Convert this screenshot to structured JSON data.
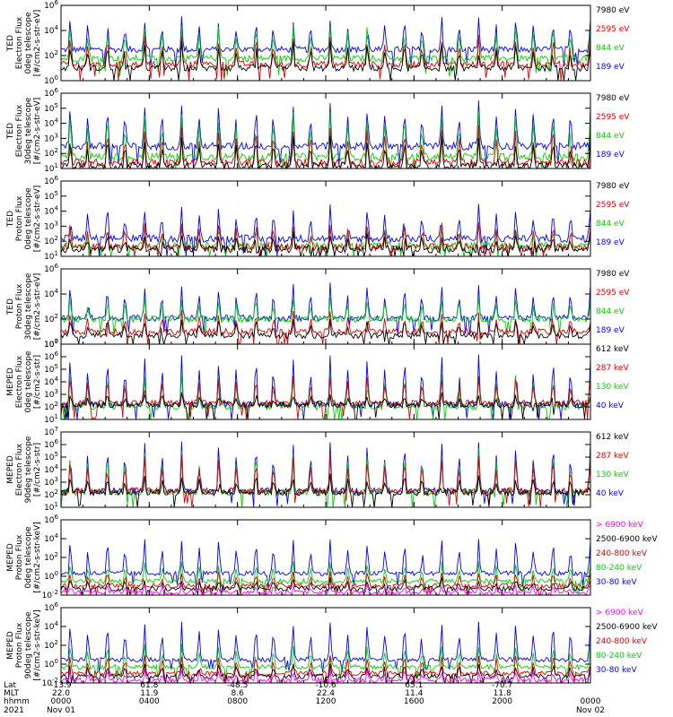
{
  "colors": {
    "black": "#000000",
    "red": "#e00000",
    "green": "#00d000",
    "blue": "#0000ff",
    "magenta": "#ff00ff"
  },
  "chart_data": [
    {
      "type": "line",
      "ylog": true,
      "ylim": [
        1,
        1000000
      ],
      "ylabel": [
        "TED",
        "Electron Flux",
        "0deg telescope",
        "[#/cm2-s-str-eV]"
      ],
      "yticks": [
        {
          "label": "10",
          "exp": "0",
          "value": 1
        },
        {
          "label": "10",
          "exp": "2",
          "value": 100
        },
        {
          "label": "10",
          "exp": "4",
          "value": 10000
        },
        {
          "label": "10",
          "exp": "6",
          "value": 1000000
        }
      ],
      "series": [
        {
          "name": "7980 eV",
          "color": "black",
          "base": 10,
          "peak": 1000
        },
        {
          "name": "2595 eV",
          "color": "red",
          "base": 20,
          "peak": 3000
        },
        {
          "name": "844 eV",
          "color": "green",
          "base": 60,
          "peak": 30000
        },
        {
          "name": "189 eV",
          "color": "blue",
          "base": 300,
          "peak": 100000
        }
      ]
    },
    {
      "type": "line",
      "ylog": true,
      "ylim": [
        10,
        1000000
      ],
      "ylabel": [
        "TED",
        "Electron Flux",
        "30deg telescope",
        "[#/cm2-s-str-eV]"
      ],
      "yticks": [
        {
          "label": "10",
          "exp": "1",
          "value": 10
        },
        {
          "label": "10",
          "exp": "2",
          "value": 100
        },
        {
          "label": "10",
          "exp": "3",
          "value": 1000
        },
        {
          "label": "10",
          "exp": "4",
          "value": 10000
        },
        {
          "label": "10",
          "exp": "5",
          "value": 100000
        },
        {
          "label": "10",
          "exp": "6",
          "value": 1000000
        }
      ],
      "series": [
        {
          "name": "7980 eV",
          "color": "black",
          "base": 15,
          "peak": 1000
        },
        {
          "name": "2595 eV",
          "color": "red",
          "base": 25,
          "peak": 5000
        },
        {
          "name": "844 eV",
          "color": "green",
          "base": 60,
          "peak": 50000
        },
        {
          "name": "189 eV",
          "color": "blue",
          "base": 300,
          "peak": 200000
        }
      ]
    },
    {
      "type": "line",
      "ylog": true,
      "ylim": [
        10,
        1000000
      ],
      "ylabel": [
        "TED",
        "Proton Flux",
        "0deg telescope",
        "[#/cm2-s-str-eV]"
      ],
      "yticks": [
        {
          "label": "10",
          "exp": "1",
          "value": 10
        },
        {
          "label": "10",
          "exp": "2",
          "value": 100
        },
        {
          "label": "10",
          "exp": "3",
          "value": 1000
        },
        {
          "label": "10",
          "exp": "4",
          "value": 10000
        },
        {
          "label": "10",
          "exp": "5",
          "value": 100000
        },
        {
          "label": "10",
          "exp": "6",
          "value": 1000000
        }
      ],
      "series": [
        {
          "name": "7980 eV",
          "color": "black",
          "base": 30,
          "peak": 300
        },
        {
          "name": "2595 eV",
          "color": "red",
          "base": 40,
          "peak": 1500
        },
        {
          "name": "844 eV",
          "color": "green",
          "base": 50,
          "peak": 1000
        },
        {
          "name": "189 eV",
          "color": "blue",
          "base": 150,
          "peak": 20000
        }
      ]
    },
    {
      "type": "line",
      "ylog": true,
      "ylim": [
        1,
        1000000
      ],
      "ylabel": [
        "TED",
        "Proton Flux",
        "30deg telescope",
        "[#/cm2-s-str-eV]"
      ],
      "yticks": [
        {
          "label": "10",
          "exp": "0",
          "value": 1
        },
        {
          "label": "10",
          "exp": "2",
          "value": 100
        },
        {
          "label": "10",
          "exp": "4",
          "value": 10000
        },
        {
          "label": "10",
          "exp": "6",
          "value": 1000000
        }
      ],
      "series": [
        {
          "name": "7980 eV",
          "color": "black",
          "base": 5,
          "peak": 100
        },
        {
          "name": "2595 eV",
          "color": "red",
          "base": 10,
          "peak": 300
        },
        {
          "name": "844 eV",
          "color": "green",
          "base": 100,
          "peak": 5000
        },
        {
          "name": "189 eV",
          "color": "blue",
          "base": 120,
          "peak": 50000
        }
      ]
    },
    {
      "type": "line",
      "ylog": true,
      "ylim": [
        10,
        10000000
      ],
      "ylabel": [
        "MEPED",
        "Electron Flux",
        "0deg telescope",
        "[#/cm2-s-str]"
      ],
      "yticks": [
        {
          "label": "10",
          "exp": "1",
          "value": 10
        },
        {
          "label": "10",
          "exp": "2",
          "value": 100
        },
        {
          "label": "10",
          "exp": "3",
          "value": 1000
        },
        {
          "label": "10",
          "exp": "4",
          "value": 10000
        },
        {
          "label": "10",
          "exp": "5",
          "value": 100000
        },
        {
          "label": "10",
          "exp": "6",
          "value": 1000000
        },
        {
          "label": "10",
          "exp": "7",
          "value": 10000000
        }
      ],
      "series": [
        {
          "name": "612 keV",
          "color": "black",
          "base": 150,
          "peak": 1000
        },
        {
          "name": "287 keV",
          "color": "red",
          "base": 200,
          "peak": 30000
        },
        {
          "name": "130 keV",
          "color": "green",
          "base": 100,
          "peak": 50000
        },
        {
          "name": "40 keV",
          "color": "blue",
          "base": 150,
          "peak": 1000000
        }
      ]
    },
    {
      "type": "line",
      "ylog": true,
      "ylim": [
        10,
        10000000
      ],
      "ylabel": [
        "MEPED",
        "Electron Flux",
        "90deg telescope",
        "[#/cm2-s-str]"
      ],
      "yticks": [
        {
          "label": "10",
          "exp": "1",
          "value": 10
        },
        {
          "label": "10",
          "exp": "2",
          "value": 100
        },
        {
          "label": "10",
          "exp": "3",
          "value": 1000
        },
        {
          "label": "10",
          "exp": "4",
          "value": 10000
        },
        {
          "label": "10",
          "exp": "5",
          "value": 100000
        },
        {
          "label": "10",
          "exp": "6",
          "value": 1000000
        },
        {
          "label": "10",
          "exp": "7",
          "value": 10000000
        }
      ],
      "series": [
        {
          "name": "612 keV",
          "color": "black",
          "base": 150,
          "peak": 3000
        },
        {
          "name": "287 keV",
          "color": "red",
          "base": 200,
          "peak": 100000
        },
        {
          "name": "130 keV",
          "color": "green",
          "base": 150,
          "peak": 300000
        },
        {
          "name": "40 keV",
          "color": "blue",
          "base": 200,
          "peak": 2000000
        }
      ]
    },
    {
      "type": "line",
      "ylog": true,
      "ylim": [
        0.01,
        1000000
      ],
      "ylabel": [
        "MEPED",
        "Proton Flux",
        "0deg telescope",
        "[#/cm2-s-str-keV]"
      ],
      "yticks": [
        {
          "label": "10",
          "exp": "-2",
          "value": 0.01
        },
        {
          "label": "10",
          "exp": "0",
          "value": 1
        },
        {
          "label": "10",
          "exp": "2",
          "value": 100
        },
        {
          "label": "10",
          "exp": "4",
          "value": 10000
        },
        {
          "label": "10",
          "exp": "6",
          "value": 1000000
        }
      ],
      "series": [
        {
          "name": "> 6900 keV",
          "color": "magenta",
          "base": 0.02,
          "peak": 0.1
        },
        {
          "name": "2500-6900 keV",
          "color": "black",
          "base": 0.05,
          "peak": 0.5
        },
        {
          "name": "240-800 keV",
          "color": "red",
          "base": 0.1,
          "peak": 3
        },
        {
          "name": "80-240 keV",
          "color": "green",
          "base": 0.3,
          "peak": 30
        },
        {
          "name": "30-80 keV",
          "color": "blue",
          "base": 2,
          "peak": 10000
        }
      ]
    },
    {
      "type": "line",
      "ylog": true,
      "ylim": [
        0.01,
        1000000
      ],
      "ylabel": [
        "MEPED",
        "Proton Flux",
        "90deg telescope",
        "[#/cm2-s-str-keV]"
      ],
      "yticks": [
        {
          "label": "10",
          "exp": "-2",
          "value": 0.01
        },
        {
          "label": "10",
          "exp": "0",
          "value": 1
        },
        {
          "label": "10",
          "exp": "2",
          "value": 100
        },
        {
          "label": "10",
          "exp": "4",
          "value": 10000
        },
        {
          "label": "10",
          "exp": "6",
          "value": 1000000
        }
      ],
      "series": [
        {
          "name": "> 6900 keV",
          "color": "magenta",
          "base": 0.02,
          "peak": 0.2
        },
        {
          "name": "2500-6900 keV",
          "color": "black",
          "base": 0.05,
          "peak": 1
        },
        {
          "name": "240-800 keV",
          "color": "red",
          "base": 0.1,
          "peak": 10
        },
        {
          "name": "80-240 keV",
          "color": "green",
          "base": 0.5,
          "peak": 100
        },
        {
          "name": "30-80 keV",
          "color": "blue",
          "base": 3,
          "peak": 30000
        }
      ]
    }
  ],
  "xaxis": {
    "row_labels": [
      "Lat",
      "MLT",
      "hhmm",
      "2021"
    ],
    "ticks": [
      {
        "lat": "-13.9",
        "mlt": "22.0",
        "hhmm": "0000",
        "date": "Nov 01"
      },
      {
        "lat": "61.8",
        "mlt": "11.9",
        "hhmm": "0400",
        "date": ""
      },
      {
        "lat": "-48.5",
        "mlt": "8.6",
        "hhmm": "0800",
        "date": ""
      },
      {
        "lat": "-10.6",
        "mlt": "22.4",
        "hhmm": "1200",
        "date": ""
      },
      {
        "lat": "65.1",
        "mlt": "11.4",
        "hhmm": "1600",
        "date": ""
      },
      {
        "lat": "-70.7",
        "mlt": "11.8",
        "hhmm": "2000",
        "date": ""
      },
      {
        "lat": "",
        "mlt": "",
        "hhmm": "0000",
        "date": "Nov 02"
      }
    ]
  }
}
